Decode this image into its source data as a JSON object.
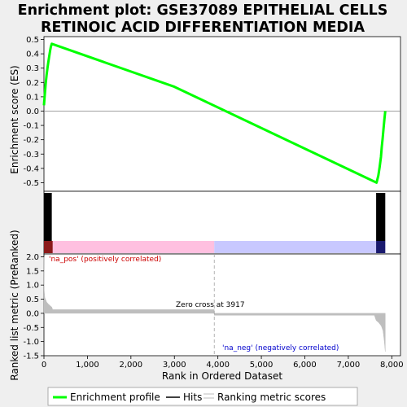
{
  "colors": {
    "background": "#efefef",
    "panel": "#ffffff",
    "es_line": "#00ff00",
    "hits": "#000000",
    "metric_fill": "#bebebe",
    "pos_band": "#ffc0e0",
    "neg_band": "#c8c8ff",
    "pos_text": "#cc0000",
    "neg_text": "#0000cc",
    "zero_cross_line": "#a0a0a0"
  },
  "chart_data": [
    {
      "type": "line",
      "title_line1": "Enrichment plot: GSE37089 EPITHELIAL CELLS",
      "title_line2": "RETINOIC ACID DIFFERENTIATION MEDIA",
      "ylabel": "Enrichment score (ES)",
      "xlim": [
        0,
        8200
      ],
      "ylim": [
        -0.56,
        0.52
      ],
      "yticks": [
        0.5,
        0.4,
        0.3,
        0.2,
        0.1,
        0.0,
        -0.1,
        -0.2,
        -0.3,
        -0.4,
        -0.5
      ],
      "ytick_labels": [
        "0.5",
        "0.4",
        "0.3",
        "0.2",
        "0.1",
        "0.0",
        "-0.1",
        "-0.2",
        "-0.3",
        "-0.4",
        "-0.5"
      ],
      "grid": false,
      "series": [
        {
          "x": [
            0,
            20,
            40,
            60,
            80,
            100,
            120,
            140,
            160,
            180,
            3000,
            7650,
            7690,
            7720,
            7750,
            7770,
            7790,
            7810,
            7830,
            7850
          ],
          "y": [
            0.04,
            0.12,
            0.19,
            0.25,
            0.3,
            0.34,
            0.38,
            0.42,
            0.45,
            0.47,
            0.17,
            -0.5,
            -0.45,
            -0.39,
            -0.32,
            -0.25,
            -0.19,
            -0.12,
            -0.06,
            0.0
          ]
        }
      ]
    },
    {
      "type": "bar",
      "subtitle": "Hits",
      "hit_ranges": [
        [
          0,
          180
        ],
        [
          7640,
          7850
        ]
      ],
      "band_ranges": {
        "positive": [
          0,
          3917
        ],
        "negative": [
          3917,
          7850
        ]
      }
    },
    {
      "type": "area",
      "xlabel": "Rank in Ordered Dataset",
      "ylabel": "Ranked list metric (PreRanked)",
      "xlim": [
        0,
        8200
      ],
      "ylim": [
        -1.5,
        2.1
      ],
      "xticks": [
        0,
        1000,
        2000,
        3000,
        4000,
        5000,
        6000,
        7000,
        8000
      ],
      "xtick_labels": [
        "0",
        "1,000",
        "2,000",
        "3,000",
        "4,000",
        "5,000",
        "6,000",
        "7,000",
        "8,000"
      ],
      "yticks": [
        2.0,
        1.5,
        1.0,
        0.5,
        0.0,
        -0.5,
        -1.0,
        -1.5
      ],
      "ytick_labels": [
        "2.0",
        "1.5",
        "1.0",
        "0.5",
        "0.0",
        "-0.5",
        "-1.0",
        "-1.5"
      ],
      "x": [
        0,
        5,
        20,
        60,
        100,
        140,
        180,
        200,
        3917,
        3918,
        7600,
        7640,
        7700,
        7760,
        7800,
        7830,
        7850
      ],
      "y": [
        2.0,
        0.8,
        0.55,
        0.4,
        0.33,
        0.27,
        0.22,
        0.13,
        0.13,
        -0.07,
        -0.07,
        -0.25,
        -0.33,
        -0.45,
        -0.62,
        -1.0,
        -1.35
      ],
      "zero_cross": 3917,
      "zero_cross_label": "Zero cross at 3917",
      "pos_label": "'na_pos' (positively correlated)",
      "neg_label": "'na_neg' (negatively correlated)"
    }
  ],
  "legend": {
    "items": [
      {
        "label": "Enrichment profile",
        "color": "#00ff00"
      },
      {
        "label": "Hits",
        "color": "#000000"
      },
      {
        "label": "Ranking metric scores",
        "color": "#bebebe"
      }
    ]
  }
}
